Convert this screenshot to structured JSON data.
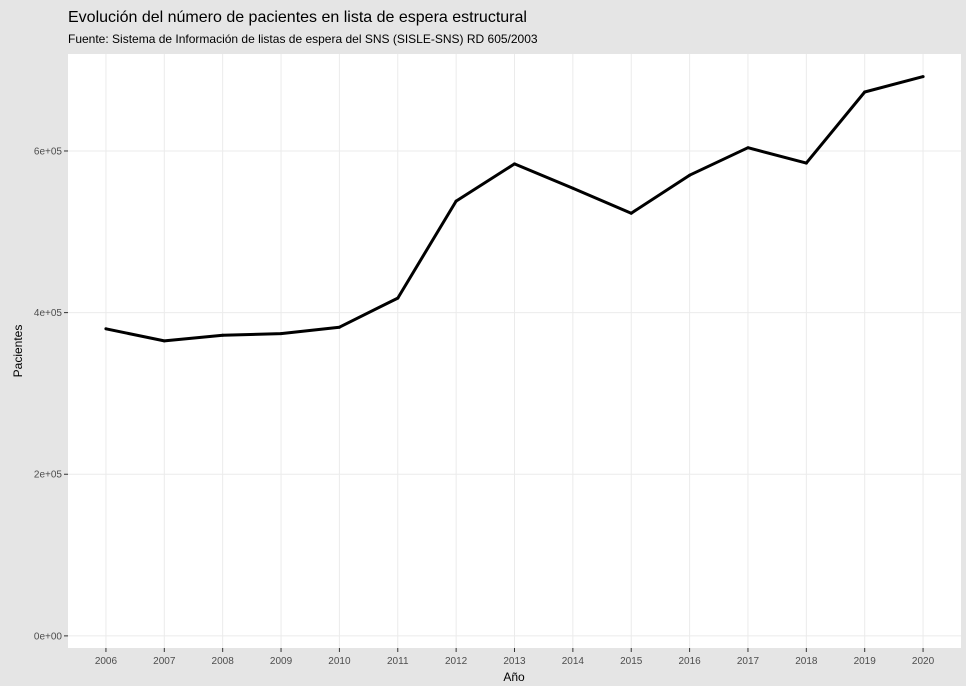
{
  "chart_data": {
    "type": "line",
    "title": "Evolución del número de pacientes en lista de espera estructural",
    "subtitle": "Fuente: Sistema de Información de listas de espera del SNS (SISLE-SNS) RD 605/2003",
    "xlabel": "Año",
    "ylabel": "Pacientes",
    "x": [
      2006,
      2007,
      2008,
      2009,
      2010,
      2011,
      2012,
      2013,
      2014,
      2015,
      2016,
      2017,
      2018,
      2019,
      2020
    ],
    "x_tick_labels": [
      "2006",
      "2007",
      "2008",
      "2009",
      "2010",
      "2011",
      "2012",
      "2013",
      "2014",
      "2015",
      "2016",
      "2017",
      "2018",
      "2019",
      "2020"
    ],
    "xlim": [
      2005.35,
      2020.65
    ],
    "series": [
      {
        "values": [
          380000,
          365000,
          372000,
          374000,
          382000,
          418000,
          538000,
          584000,
          554000,
          523000,
          570000,
          604000,
          585000,
          673000,
          692000
        ],
        "color": "#000000"
      }
    ],
    "y_ticks": [
      0,
      200000,
      400000,
      600000
    ],
    "y_tick_labels": [
      "0e+00",
      "2e+05",
      "4e+05",
      "6e+05"
    ],
    "ylim": [
      -15000,
      720000
    ],
    "grid": true,
    "legend": "none",
    "colors": {
      "background": "#e5e5e5",
      "panel": "#ffffff",
      "grid_major": "#ebebeb",
      "line": "#000000"
    }
  }
}
